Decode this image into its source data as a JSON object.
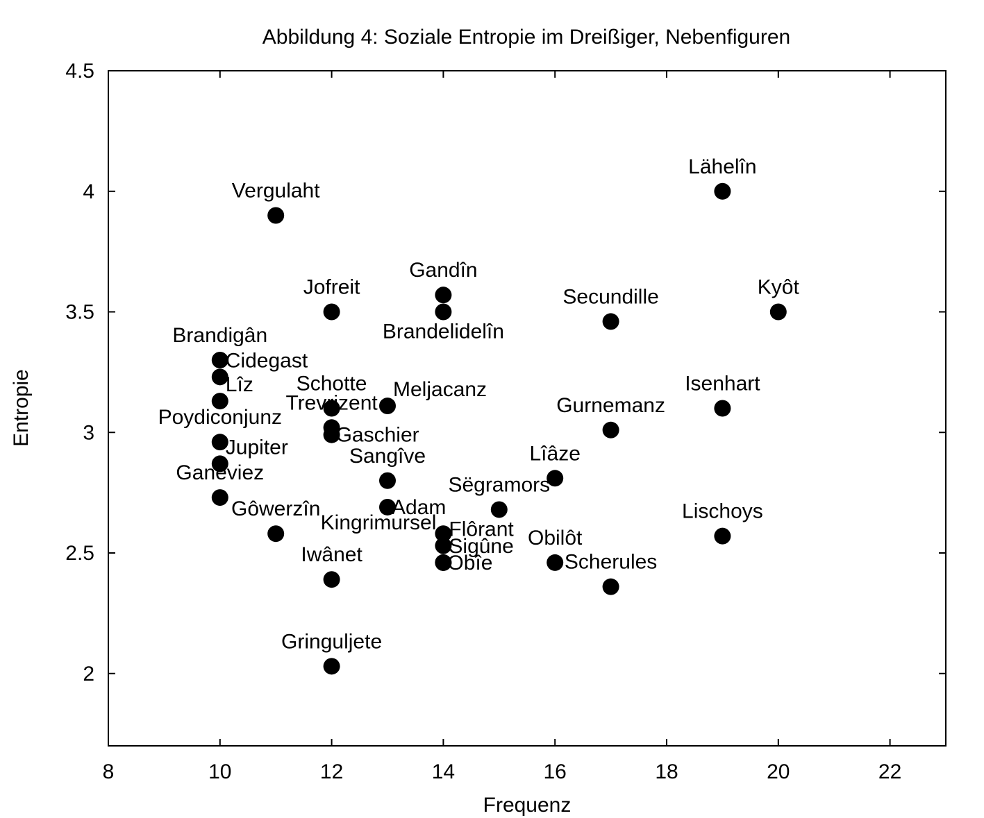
{
  "chart_data": {
    "type": "scatter",
    "title": "Abbildung 4: Soziale Entropie im Dreißiger, Nebenfiguren",
    "xlabel": "Frequenz",
    "ylabel": "Entropie",
    "xlim": [
      8,
      23
    ],
    "ylim": [
      1.7,
      4.5
    ],
    "xticks": [
      8,
      10,
      12,
      14,
      16,
      18,
      20,
      22
    ],
    "xtick_labels": [
      "8",
      "10",
      "12",
      "14",
      "16",
      "18",
      "20",
      "22"
    ],
    "yticks": [
      2,
      2.5,
      3,
      3.5,
      4,
      4.5
    ],
    "ytick_labels": [
      "2",
      "2.5",
      "3",
      "3.5",
      "4",
      "4.5"
    ],
    "grid": false,
    "legend": "none",
    "marker_color": "#000000",
    "points": [
      {
        "label": "Vergulaht",
        "x": 11,
        "y": 3.9,
        "label_pos": "above"
      },
      {
        "label": "Lähelîn",
        "x": 19,
        "y": 4.0,
        "label_pos": "above"
      },
      {
        "label": "Gandîn",
        "x": 14,
        "y": 3.57,
        "label_pos": "above"
      },
      {
        "label": "Jofreit",
        "x": 12,
        "y": 3.5,
        "label_pos": "above"
      },
      {
        "label": "Brandelidelîn",
        "x": 14,
        "y": 3.5,
        "label_pos": "below"
      },
      {
        "label": "Kyôt",
        "x": 20,
        "y": 3.5,
        "label_pos": "above"
      },
      {
        "label": "Secundille",
        "x": 17,
        "y": 3.46,
        "label_pos": "above"
      },
      {
        "label": "Brandigân",
        "x": 10,
        "y": 3.3,
        "label_pos": "above"
      },
      {
        "label": "Cidegast",
        "x": 10,
        "y": 3.23,
        "label_pos": "above-right"
      },
      {
        "label": "Lîz",
        "x": 10,
        "y": 3.13,
        "label_pos": "above-right"
      },
      {
        "label": "Schotte",
        "x": 12,
        "y": 3.1,
        "label_pos": "above"
      },
      {
        "label": "Trevrizent",
        "x": 12,
        "y": 3.02,
        "label_pos": "above"
      },
      {
        "label": "Meljacanz",
        "x": 13,
        "y": 3.11,
        "label_pos": "above-right"
      },
      {
        "label": "Gaschier",
        "x": 12,
        "y": 2.99,
        "label_pos": "right"
      },
      {
        "label": "Isenhart",
        "x": 19,
        "y": 3.1,
        "label_pos": "above"
      },
      {
        "label": "Gurnemanz",
        "x": 17,
        "y": 3.01,
        "label_pos": "above"
      },
      {
        "label": "Poydiconjunz",
        "x": 10,
        "y": 2.96,
        "label_pos": "above"
      },
      {
        "label": "Jupiter",
        "x": 10,
        "y": 2.87,
        "label_pos": "above-right"
      },
      {
        "label": "Ganeviez",
        "x": 10,
        "y": 2.73,
        "label_pos": "above"
      },
      {
        "label": "Sangîve",
        "x": 13,
        "y": 2.8,
        "label_pos": "above"
      },
      {
        "label": "Lîâze",
        "x": 16,
        "y": 2.81,
        "label_pos": "above"
      },
      {
        "label": "Adam",
        "x": 13,
        "y": 2.69,
        "label_pos": "right"
      },
      {
        "label": "Sëgramors",
        "x": 15,
        "y": 2.68,
        "label_pos": "above"
      },
      {
        "label": "Gôwerzîn",
        "x": 11,
        "y": 2.58,
        "label_pos": "above"
      },
      {
        "label": "Kingrimursel",
        "x": 14,
        "y": 2.58,
        "label_pos": "above-left"
      },
      {
        "label": "Flôrant",
        "x": 14,
        "y": 2.53,
        "label_pos": "above-right"
      },
      {
        "label": "Sigûne",
        "x": 14,
        "y": 2.46,
        "label_pos": "above-right"
      },
      {
        "label": "Obîe",
        "x": 14,
        "y": 2.46,
        "label_pos": "right"
      },
      {
        "label": "Lischoys",
        "x": 19,
        "y": 2.57,
        "label_pos": "above"
      },
      {
        "label": "Obilôt",
        "x": 16,
        "y": 2.46,
        "label_pos": "above"
      },
      {
        "label": "Scherules",
        "x": 17,
        "y": 2.36,
        "label_pos": "above"
      },
      {
        "label": "Iwânet",
        "x": 12,
        "y": 2.39,
        "label_pos": "above"
      },
      {
        "label": "Gringuljete",
        "x": 12,
        "y": 2.03,
        "label_pos": "above"
      }
    ]
  }
}
